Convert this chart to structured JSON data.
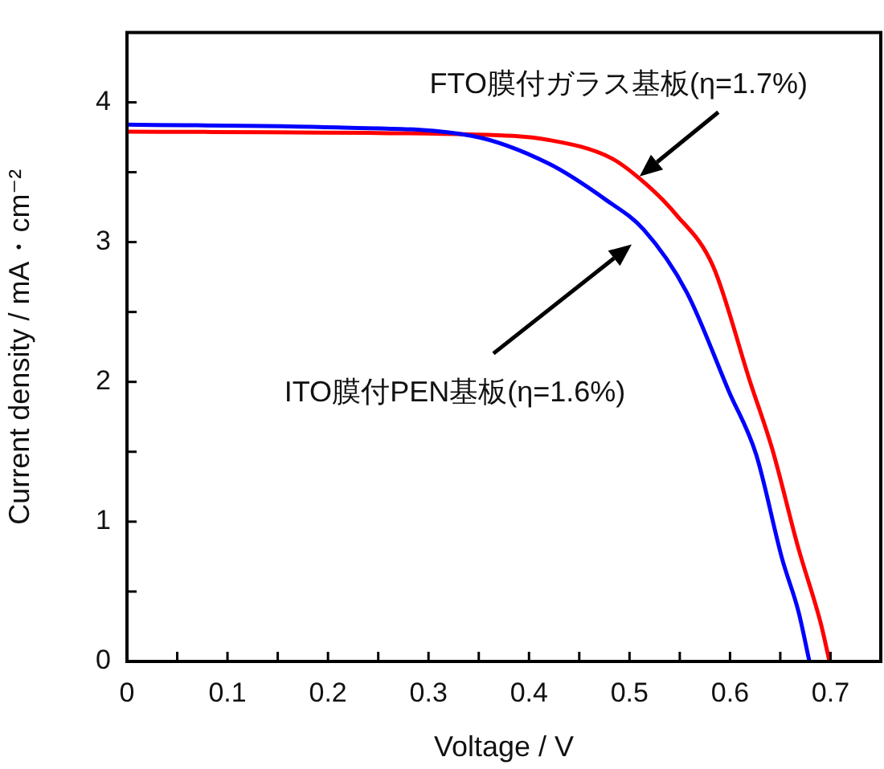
{
  "chart_data": {
    "type": "line",
    "xlabel": "Voltage / V",
    "ylabel": "Current density / mA・cm⁻²",
    "xlim": [
      0,
      0.75
    ],
    "ylim": [
      0,
      4.5
    ],
    "xticks": [
      0,
      {
        "value": 0.05,
        "label": null
      },
      0.1,
      {
        "value": 0.15,
        "label": null
      },
      0.2,
      {
        "value": 0.25,
        "label": null
      },
      0.3,
      {
        "value": 0.35,
        "label": null
      },
      0.4,
      {
        "value": 0.45,
        "label": null
      },
      0.5,
      {
        "value": 0.55,
        "label": null
      },
      0.6,
      {
        "value": 0.65,
        "label": null
      },
      0.7
    ],
    "yticks": [
      0,
      {
        "value": 0.5,
        "label": null
      },
      1,
      {
        "value": 1.5,
        "label": null
      },
      2,
      {
        "value": 2.5,
        "label": null
      },
      3,
      {
        "value": 3.5,
        "label": null
      },
      4
    ],
    "series": [
      {
        "color": "#0000ff",
        "x": [
          0,
          0.21,
          0.343,
          0.42,
          0.477,
          0.514,
          0.557,
          0.599,
          0.626,
          0.652,
          0.668,
          0.679
        ],
        "values": [
          3.84,
          3.82,
          3.76,
          3.56,
          3.3,
          3.09,
          2.64,
          1.93,
          1.48,
          0.73,
          0.36,
          0
        ]
      },
      {
        "color": "#ff0000",
        "x": [
          0,
          0.343,
          0.42,
          0.482,
          0.514,
          0.546,
          0.583,
          0.62,
          0.642,
          0.668,
          0.69,
          0.699
        ],
        "values": [
          3.79,
          3.77,
          3.73,
          3.6,
          3.43,
          3.2,
          2.83,
          2.0,
          1.52,
          0.81,
          0.28,
          0
        ]
      }
    ],
    "annotations": [
      {
        "text": "FTO膜付ガラス基板(η=1.7%)",
        "x": 0.51,
        "y": 3.47
      },
      "ITO膜付PEN基板(η=1.6%)"
    ],
    "marker": "none",
    "line_style": "solid",
    "legend": false,
    "grid": false
  }
}
